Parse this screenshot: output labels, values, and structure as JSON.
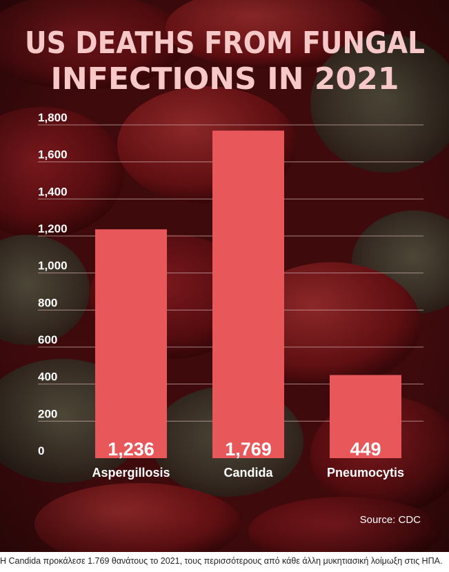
{
  "colors": {
    "bar": "#e8585a",
    "title": "#f7c8c8",
    "text": "#ffffff",
    "grid": "#c9a8a8",
    "background": "#4a0d10"
  },
  "chart_data": {
    "type": "bar",
    "title": "US DEATHS FROM FUNGAL INFECTIONS IN 2021",
    "title_lines": [
      "US DEATHS FROM FUNGAL",
      "INFECTIONS IN 2021"
    ],
    "categories": [
      "Aspergillosis",
      "Candida",
      "Pneumocytis"
    ],
    "values": [
      1236,
      1769,
      449
    ],
    "data_labels": [
      "1,236",
      "1,769",
      "449"
    ],
    "ylim": [
      0,
      1800
    ],
    "yticks": [
      0,
      200,
      400,
      600,
      800,
      1000,
      1200,
      1400,
      1600,
      1800
    ],
    "ytick_labels": [
      "0",
      "200",
      "400",
      "600",
      "800",
      "1,000",
      "1,200",
      "1,400",
      "1,600",
      "1,800"
    ],
    "grid": true,
    "source": "Source: CDC"
  },
  "caption": "Η Candida προκάλεσε 1.769 θανάτους το 2021, τους περισσότερους από κάθε άλλη μυκητιασική λοίμωξη στις ΗΠΑ."
}
